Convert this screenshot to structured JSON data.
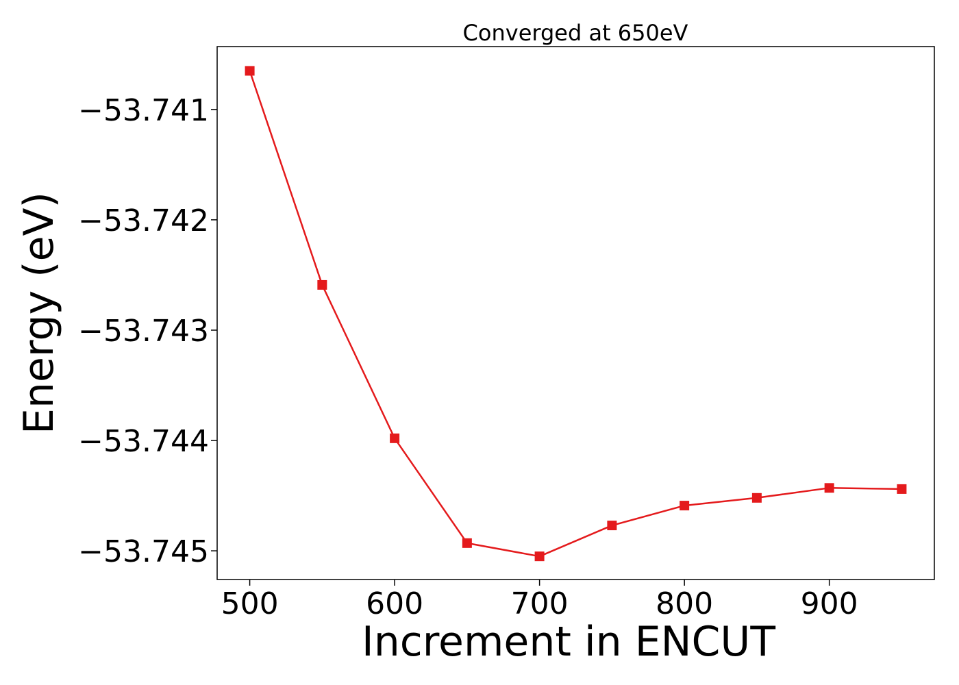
{
  "chart_data": {
    "type": "line",
    "title": "Converged at 650eV",
    "xlabel": "Increment in ENCUT",
    "ylabel": "Energy (eV)",
    "xlim": [
      477.5,
      972.5
    ],
    "ylim": [
      -53.74526,
      -53.74043
    ],
    "xticks": [
      500,
      600,
      700,
      800,
      900
    ],
    "xtick_labels": [
      "500",
      "600",
      "700",
      "800",
      "900"
    ],
    "yticks": [
      -53.741,
      -53.742,
      -53.743,
      -53.744,
      -53.745
    ],
    "ytick_labels": [
      "−53.741",
      "−53.742",
      "−53.743",
      "−53.744",
      "−53.745"
    ],
    "grid": false,
    "series": [
      {
        "color": "#e41a1c",
        "marker": "square",
        "x": [
          500,
          550,
          600,
          650,
          700,
          750,
          800,
          850,
          900,
          950
        ],
        "y": [
          -53.74065,
          -53.74259,
          -53.74398,
          -53.74493,
          -53.74505,
          -53.74477,
          -53.74459,
          -53.74452,
          -53.74443,
          -53.74444
        ]
      }
    ]
  }
}
